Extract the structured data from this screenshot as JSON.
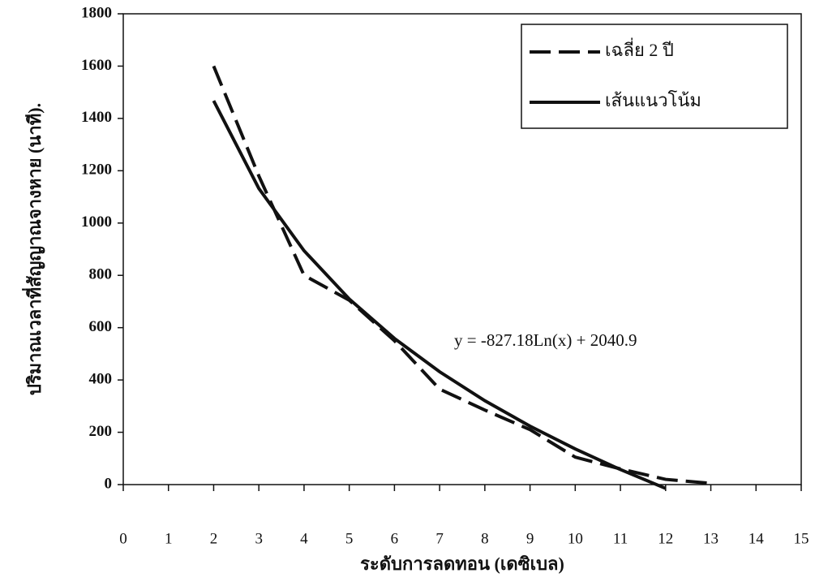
{
  "chart_data": {
    "type": "line",
    "x_label": "ระดับการลดทอน (เดซิเบล)",
    "y_label": "ปริมาณเวลาที่สัญญาณจางหาย (นาที).",
    "annotation": "y = -827.18Ln(x) + 2040.9",
    "xlim": [
      0,
      15
    ],
    "xticks": [
      0,
      1,
      2,
      3,
      4,
      5,
      6,
      7,
      8,
      9,
      10,
      11,
      12,
      13,
      14,
      15
    ],
    "ylim": [
      0,
      1800
    ],
    "yticks": [
      0,
      200,
      400,
      600,
      800,
      1000,
      1200,
      1400,
      1600,
      1800
    ],
    "legend": "top-right",
    "series": [
      {
        "name": "เฉลี่ย 2 ปี",
        "color": "#111111",
        "line_style": "dashed",
        "x": [
          2,
          3,
          4,
          5,
          6,
          7,
          8,
          9,
          10,
          11,
          12,
          13
        ],
        "values": [
          1600,
          1180,
          800,
          705,
          550,
          365,
          285,
          210,
          105,
          60,
          20,
          5
        ]
      },
      {
        "name": "เส้นแนวโน้ม",
        "color": "#111111",
        "line_style": "solid",
        "x": [
          2,
          3,
          4,
          5,
          6,
          7,
          8,
          9,
          10,
          11,
          12
        ],
        "values": [
          1467.5,
          1132.1,
          894.2,
          709.6,
          558.8,
          431.3,
          320.8,
          223.4,
          136.3,
          57.5,
          -14.5
        ]
      }
    ]
  }
}
